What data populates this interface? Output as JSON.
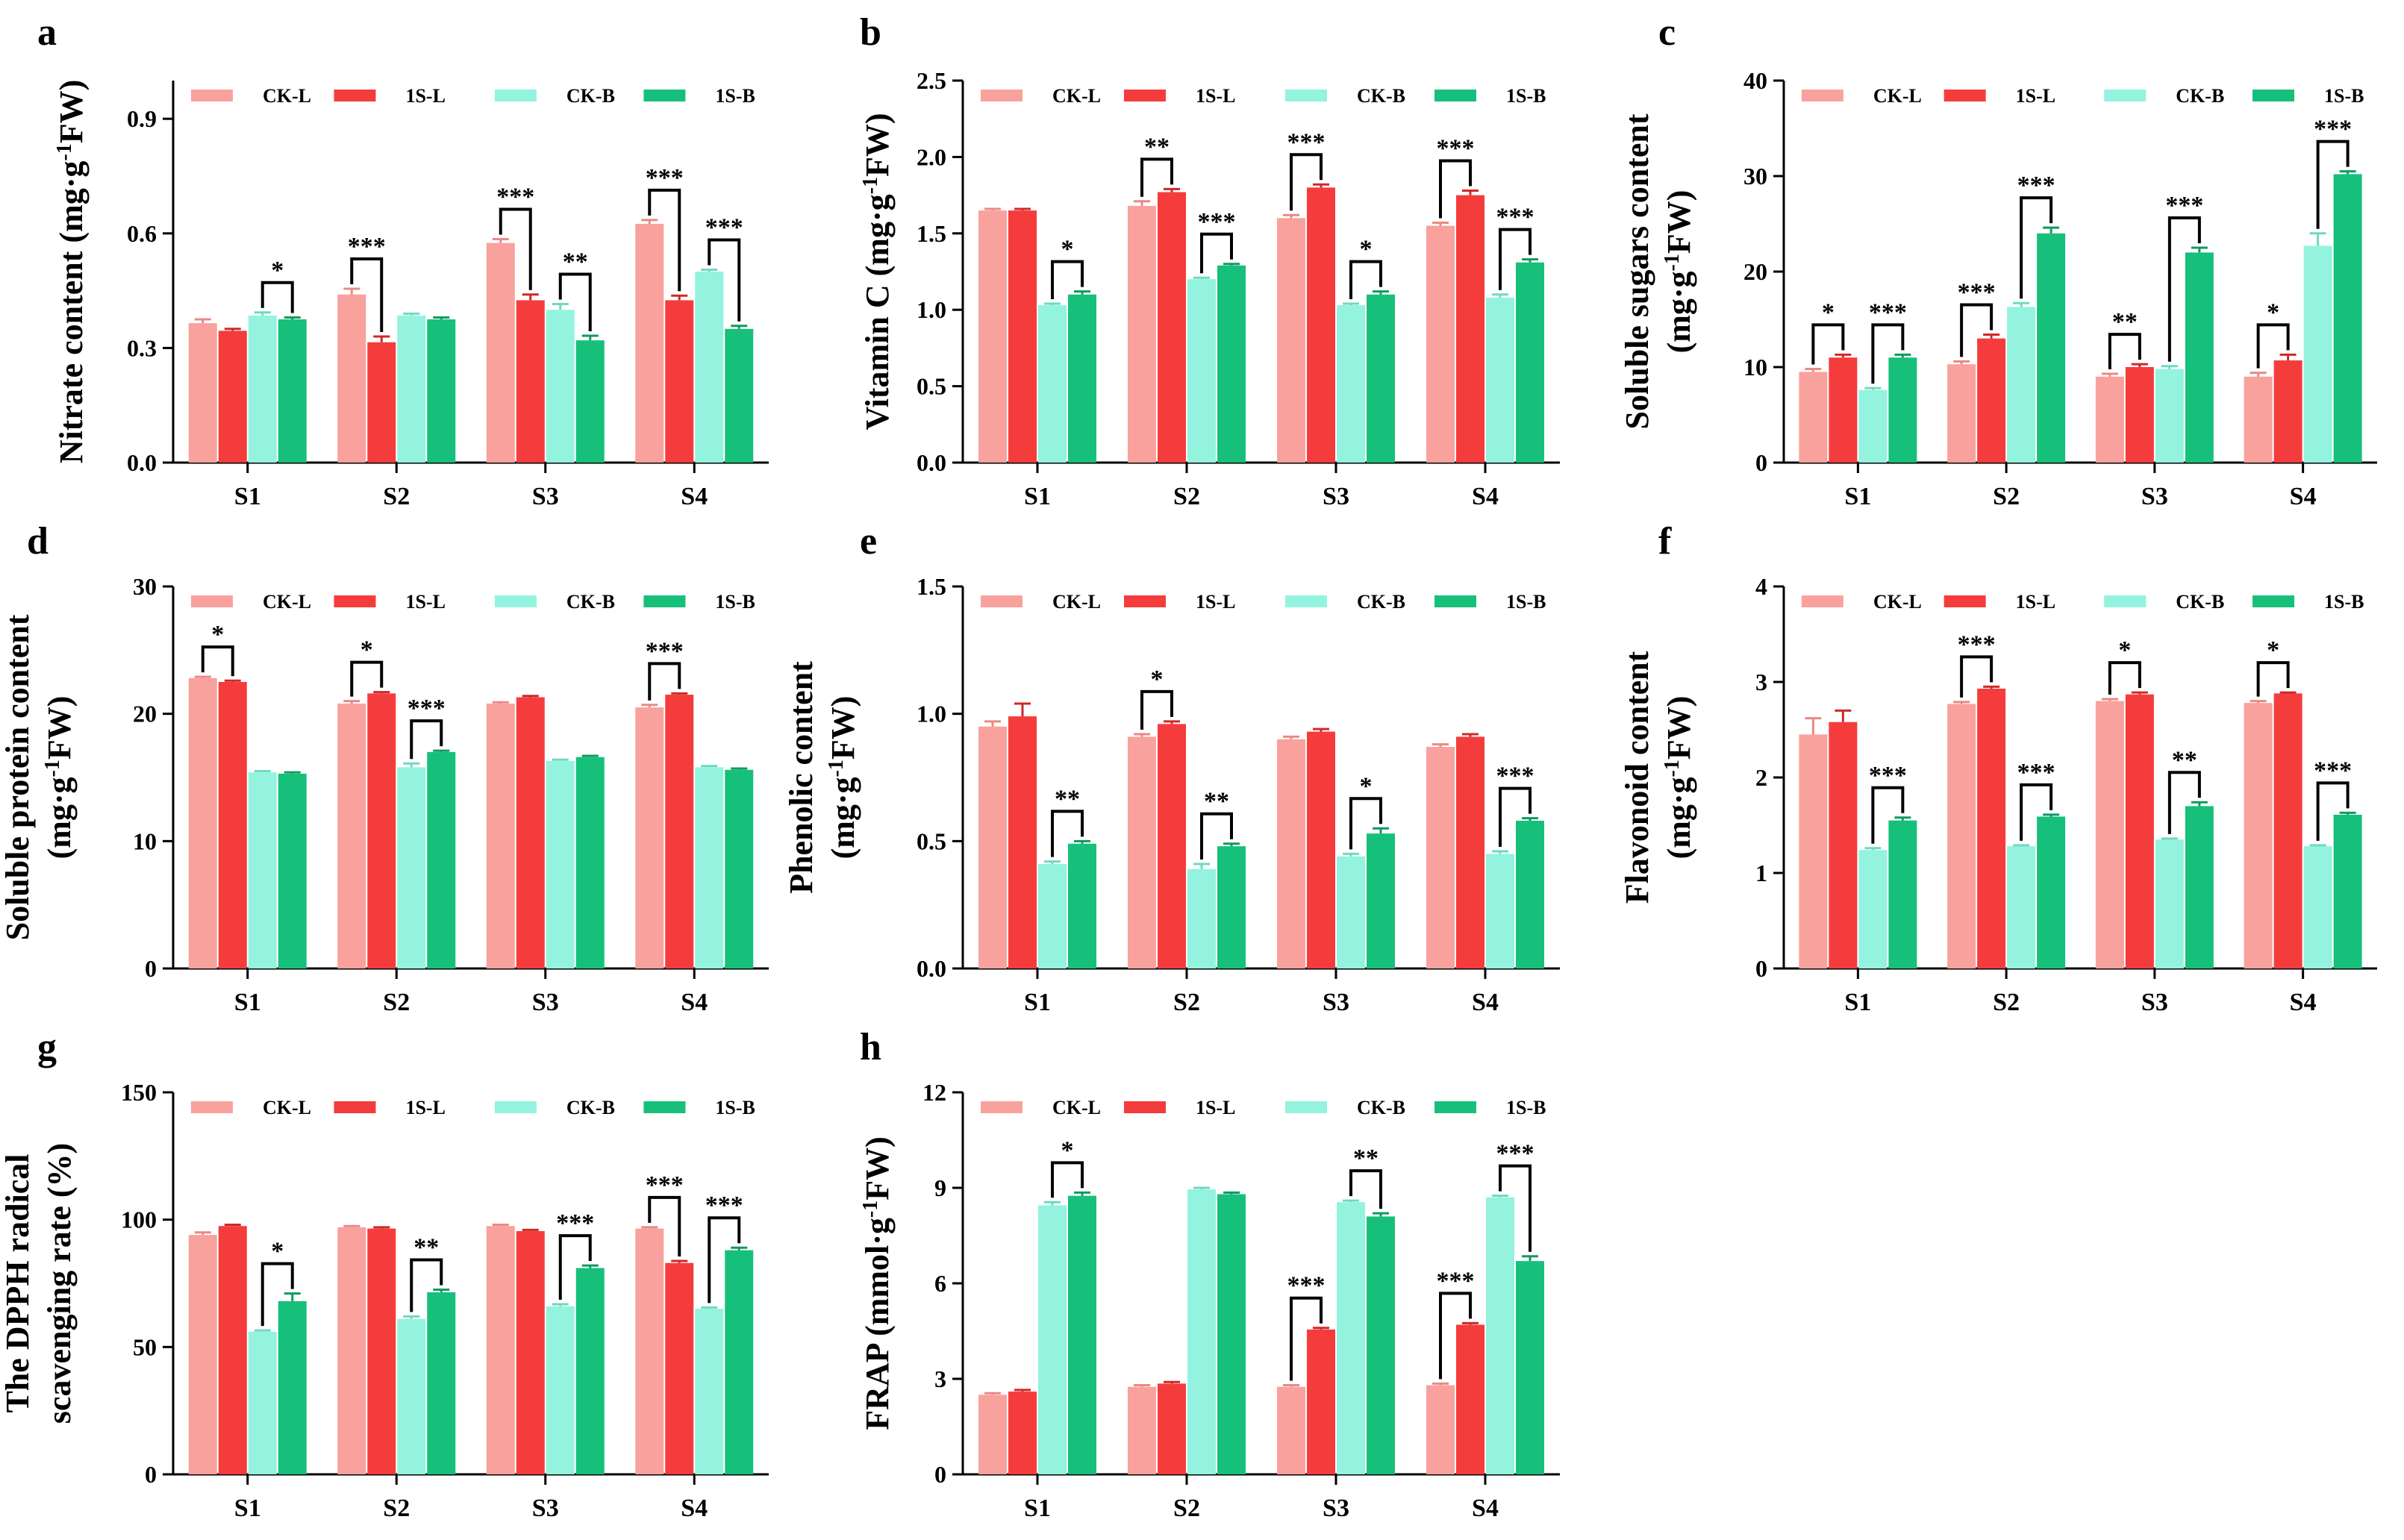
{
  "colors": {
    "CK-L": "#f9a19c",
    "1S-L": "#f53c3c",
    "CK-B": "#93f3de",
    "1S-B": "#17c07a",
    "err_CK-L": "#e88a85",
    "err_1S-L": "#d02828",
    "err_CK-B": "#6fd9c2",
    "err_1S-B": "#0e9a5f"
  },
  "legend": [
    "CK-L",
    "1S-L",
    "CK-B",
    "1S-B"
  ],
  "chart_data": [
    {
      "panel": "a",
      "type": "bar",
      "ylabel": [
        "Nitrate content (mg·g",
        "-1",
        "FW)"
      ],
      "ylim": [
        0,
        1.0
      ],
      "yticks": [
        0.0,
        0.3,
        0.6,
        0.9
      ],
      "tick_decimals": 1,
      "categories": [
        "S1",
        "S2",
        "S3",
        "S4"
      ],
      "series": [
        {
          "name": "CK-L",
          "values": [
            0.365,
            0.44,
            0.575,
            0.625
          ],
          "errors": [
            0.01,
            0.015,
            0.01,
            0.01
          ]
        },
        {
          "name": "1S-L",
          "values": [
            0.345,
            0.315,
            0.425,
            0.425
          ],
          "errors": [
            0.005,
            0.015,
            0.015,
            0.012
          ]
        },
        {
          "name": "CK-B",
          "values": [
            0.385,
            0.385,
            0.4,
            0.5
          ],
          "errors": [
            0.008,
            0.005,
            0.015,
            0.005
          ]
        },
        {
          "name": "1S-B",
          "values": [
            0.375,
            0.375,
            0.32,
            0.35
          ],
          "errors": [
            0.005,
            0.005,
            0.012,
            0.008
          ]
        }
      ],
      "significance": [
        {
          "cat": 0,
          "pair": "B",
          "label": "*"
        },
        {
          "cat": 1,
          "pair": "L",
          "label": "***"
        },
        {
          "cat": 2,
          "pair": "L",
          "label": "***"
        },
        {
          "cat": 2,
          "pair": "B",
          "label": "**"
        },
        {
          "cat": 3,
          "pair": "L",
          "label": "***"
        },
        {
          "cat": 3,
          "pair": "B",
          "label": "***"
        }
      ]
    },
    {
      "panel": "b",
      "type": "bar",
      "ylabel": [
        "Vitamin C (mg·g",
        "-1",
        "FW)"
      ],
      "ylim": [
        0,
        2.5
      ],
      "yticks": [
        0.0,
        0.5,
        1.0,
        1.5,
        2.0,
        2.5
      ],
      "tick_decimals": 1,
      "categories": [
        "S1",
        "S2",
        "S3",
        "S4"
      ],
      "series": [
        {
          "name": "CK-L",
          "values": [
            1.65,
            1.68,
            1.6,
            1.55
          ],
          "errors": [
            0.01,
            0.03,
            0.02,
            0.02
          ]
        },
        {
          "name": "1S-L",
          "values": [
            1.65,
            1.77,
            1.8,
            1.75
          ],
          "errors": [
            0.01,
            0.02,
            0.02,
            0.03
          ]
        },
        {
          "name": "CK-B",
          "values": [
            1.03,
            1.2,
            1.03,
            1.08
          ],
          "errors": [
            0.01,
            0.01,
            0.01,
            0.02
          ]
        },
        {
          "name": "1S-B",
          "values": [
            1.1,
            1.29,
            1.1,
            1.31
          ],
          "errors": [
            0.02,
            0.01,
            0.02,
            0.02
          ]
        }
      ],
      "significance": [
        {
          "cat": 0,
          "pair": "B",
          "label": "*"
        },
        {
          "cat": 1,
          "pair": "L",
          "label": "**"
        },
        {
          "cat": 1,
          "pair": "B",
          "label": "***"
        },
        {
          "cat": 2,
          "pair": "L",
          "label": "***"
        },
        {
          "cat": 2,
          "pair": "B",
          "label": "*"
        },
        {
          "cat": 3,
          "pair": "L",
          "label": "***"
        },
        {
          "cat": 3,
          "pair": "B",
          "label": "***"
        }
      ]
    },
    {
      "panel": "c",
      "type": "bar",
      "ylabel": [
        "Soluble sugars content",
        "(mg·g",
        "-1",
        "FW)"
      ],
      "ylim": [
        0,
        40
      ],
      "yticks": [
        0,
        10,
        20,
        30,
        40
      ],
      "tick_decimals": 0,
      "categories": [
        "S1",
        "S2",
        "S3",
        "S4"
      ],
      "series": [
        {
          "name": "CK-L",
          "values": [
            9.5,
            10.3,
            9.0,
            9.0
          ],
          "errors": [
            0.3,
            0.3,
            0.3,
            0.4
          ]
        },
        {
          "name": "1S-L",
          "values": [
            11.0,
            13.0,
            10.0,
            10.7
          ],
          "errors": [
            0.3,
            0.4,
            0.3,
            0.6
          ]
        },
        {
          "name": "CK-B",
          "values": [
            7.6,
            16.3,
            9.8,
            22.7
          ],
          "errors": [
            0.2,
            0.4,
            0.3,
            1.3
          ]
        },
        {
          "name": "1S-B",
          "values": [
            11.0,
            24.0,
            22.0,
            30.2
          ],
          "errors": [
            0.3,
            0.6,
            0.5,
            0.3
          ]
        }
      ],
      "significance": [
        {
          "cat": 0,
          "pair": "L",
          "label": "*"
        },
        {
          "cat": 0,
          "pair": "B",
          "label": "***"
        },
        {
          "cat": 1,
          "pair": "L",
          "label": "***"
        },
        {
          "cat": 1,
          "pair": "B",
          "label": "***"
        },
        {
          "cat": 2,
          "pair": "L",
          "label": "**"
        },
        {
          "cat": 2,
          "pair": "B",
          "label": "***"
        },
        {
          "cat": 3,
          "pair": "L",
          "label": "*"
        },
        {
          "cat": 3,
          "pair": "B",
          "label": "***"
        }
      ]
    },
    {
      "panel": "d",
      "type": "bar",
      "ylabel": [
        "Soluble protein content",
        "(mg·g",
        "-1",
        "FW)"
      ],
      "ylim": [
        0,
        30
      ],
      "yticks": [
        0,
        10,
        20,
        30
      ],
      "tick_decimals": 0,
      "categories": [
        "S1",
        "S2",
        "S3",
        "S4"
      ],
      "series": [
        {
          "name": "CK-L",
          "values": [
            22.8,
            20.8,
            20.8,
            20.5
          ],
          "errors": [
            0.1,
            0.2,
            0.1,
            0.2
          ]
        },
        {
          "name": "1S-L",
          "values": [
            22.5,
            21.6,
            21.3,
            21.5
          ],
          "errors": [
            0.1,
            0.1,
            0.1,
            0.1
          ]
        },
        {
          "name": "CK-B",
          "values": [
            15.4,
            15.8,
            16.3,
            15.8
          ],
          "errors": [
            0.1,
            0.3,
            0.1,
            0.1
          ]
        },
        {
          "name": "1S-B",
          "values": [
            15.3,
            17.0,
            16.6,
            15.6
          ],
          "errors": [
            0.1,
            0.1,
            0.1,
            0.1
          ]
        }
      ],
      "significance": [
        {
          "cat": 0,
          "pair": "L",
          "label": "*"
        },
        {
          "cat": 1,
          "pair": "L",
          "label": "*"
        },
        {
          "cat": 1,
          "pair": "B",
          "label": "***"
        },
        {
          "cat": 3,
          "pair": "L",
          "label": "***"
        }
      ]
    },
    {
      "panel": "e",
      "type": "bar",
      "ylabel": [
        "Phenolic content",
        "(mg·g",
        "-1",
        "FW)"
      ],
      "ylim": [
        0,
        1.5
      ],
      "yticks": [
        0.0,
        0.5,
        1.0,
        1.5
      ],
      "tick_decimals": 1,
      "categories": [
        "S1",
        "S2",
        "S3",
        "S4"
      ],
      "series": [
        {
          "name": "CK-L",
          "values": [
            0.95,
            0.91,
            0.9,
            0.87
          ],
          "errors": [
            0.02,
            0.01,
            0.01,
            0.01
          ]
        },
        {
          "name": "1S-L",
          "values": [
            0.99,
            0.96,
            0.93,
            0.91
          ],
          "errors": [
            0.05,
            0.01,
            0.01,
            0.01
          ]
        },
        {
          "name": "CK-B",
          "values": [
            0.41,
            0.39,
            0.44,
            0.45
          ],
          "errors": [
            0.01,
            0.02,
            0.01,
            0.01
          ]
        },
        {
          "name": "1S-B",
          "values": [
            0.49,
            0.48,
            0.53,
            0.58
          ],
          "errors": [
            0.01,
            0.01,
            0.02,
            0.01
          ]
        }
      ],
      "significance": [
        {
          "cat": 0,
          "pair": "B",
          "label": "**"
        },
        {
          "cat": 1,
          "pair": "L",
          "label": "*"
        },
        {
          "cat": 1,
          "pair": "B",
          "label": "**"
        },
        {
          "cat": 2,
          "pair": "B",
          "label": "*"
        },
        {
          "cat": 3,
          "pair": "B",
          "label": "***"
        }
      ]
    },
    {
      "panel": "f",
      "type": "bar",
      "ylabel": [
        "Flavonoid content",
        "(mg·g",
        "-1",
        "FW)"
      ],
      "ylim": [
        0,
        4
      ],
      "yticks": [
        0,
        1,
        2,
        3,
        4
      ],
      "tick_decimals": 0,
      "categories": [
        "S1",
        "S2",
        "S3",
        "S4"
      ],
      "series": [
        {
          "name": "CK-L",
          "values": [
            2.45,
            2.77,
            2.8,
            2.78
          ],
          "errors": [
            0.17,
            0.02,
            0.02,
            0.02
          ]
        },
        {
          "name": "1S-L",
          "values": [
            2.58,
            2.93,
            2.87,
            2.88
          ],
          "errors": [
            0.12,
            0.02,
            0.02,
            0.01
          ]
        },
        {
          "name": "CK-B",
          "values": [
            1.24,
            1.28,
            1.35,
            1.28
          ],
          "errors": [
            0.02,
            0.01,
            0.01,
            0.01
          ]
        },
        {
          "name": "1S-B",
          "values": [
            1.55,
            1.59,
            1.7,
            1.61
          ],
          "errors": [
            0.03,
            0.02,
            0.04,
            0.02
          ]
        }
      ],
      "significance": [
        {
          "cat": 0,
          "pair": "B",
          "label": "***"
        },
        {
          "cat": 1,
          "pair": "L",
          "label": "***"
        },
        {
          "cat": 1,
          "pair": "B",
          "label": "***"
        },
        {
          "cat": 2,
          "pair": "L",
          "label": "*"
        },
        {
          "cat": 2,
          "pair": "B",
          "label": "**"
        },
        {
          "cat": 3,
          "pair": "L",
          "label": "*"
        },
        {
          "cat": 3,
          "pair": "B",
          "label": "***"
        }
      ]
    },
    {
      "panel": "g",
      "type": "bar",
      "ylabel": [
        "The DPPH radical",
        "scavenging rate (%)"
      ],
      "ylim": [
        0,
        150
      ],
      "yticks": [
        0,
        50,
        100,
        150
      ],
      "tick_decimals": 0,
      "categories": [
        "S1",
        "S2",
        "S3",
        "S4"
      ],
      "series": [
        {
          "name": "CK-L",
          "values": [
            94,
            97,
            97.5,
            96.5
          ],
          "errors": [
            1.0,
            0.5,
            0.5,
            0.5
          ]
        },
        {
          "name": "1S-L",
          "values": [
            97.5,
            96.5,
            95.5,
            83
          ],
          "errors": [
            0.5,
            0.5,
            0.5,
            0.8
          ]
        },
        {
          "name": "CK-B",
          "values": [
            56,
            61,
            66,
            65
          ],
          "errors": [
            0.5,
            1.0,
            0.8,
            0.5
          ]
        },
        {
          "name": "1S-B",
          "values": [
            68,
            71.5,
            81,
            88
          ],
          "errors": [
            3.0,
            1.0,
            1.0,
            1.0
          ]
        }
      ],
      "significance": [
        {
          "cat": 0,
          "pair": "B",
          "label": "*"
        },
        {
          "cat": 1,
          "pair": "B",
          "label": "**"
        },
        {
          "cat": 2,
          "pair": "B",
          "label": "***"
        },
        {
          "cat": 3,
          "pair": "L",
          "label": "***"
        },
        {
          "cat": 3,
          "pair": "B",
          "label": "***"
        }
      ]
    },
    {
      "panel": "h",
      "type": "bar",
      "ylabel": [
        "FRAP (mmol·g",
        "-1",
        "FW)"
      ],
      "ylim": [
        0,
        12
      ],
      "yticks": [
        0,
        3,
        6,
        9,
        12
      ],
      "tick_decimals": 0,
      "categories": [
        "S1",
        "S2",
        "S3",
        "S4"
      ],
      "series": [
        {
          "name": "CK-L",
          "values": [
            2.5,
            2.75,
            2.75,
            2.8
          ],
          "errors": [
            0.05,
            0.05,
            0.05,
            0.05
          ]
        },
        {
          "name": "1S-L",
          "values": [
            2.6,
            2.85,
            4.55,
            4.7
          ],
          "errors": [
            0.05,
            0.05,
            0.05,
            0.05
          ]
        },
        {
          "name": "CK-B",
          "values": [
            8.45,
            8.95,
            8.55,
            8.7
          ],
          "errors": [
            0.1,
            0.05,
            0.05,
            0.05
          ]
        },
        {
          "name": "1S-B",
          "values": [
            8.75,
            8.8,
            8.1,
            6.7
          ],
          "errors": [
            0.1,
            0.05,
            0.1,
            0.15
          ]
        }
      ],
      "significance": [
        {
          "cat": 0,
          "pair": "B",
          "label": "*"
        },
        {
          "cat": 2,
          "pair": "L",
          "label": "***"
        },
        {
          "cat": 2,
          "pair": "B",
          "label": "**"
        },
        {
          "cat": 3,
          "pair": "L",
          "label": "***"
        },
        {
          "cat": 3,
          "pair": "B",
          "label": "***"
        }
      ]
    }
  ]
}
